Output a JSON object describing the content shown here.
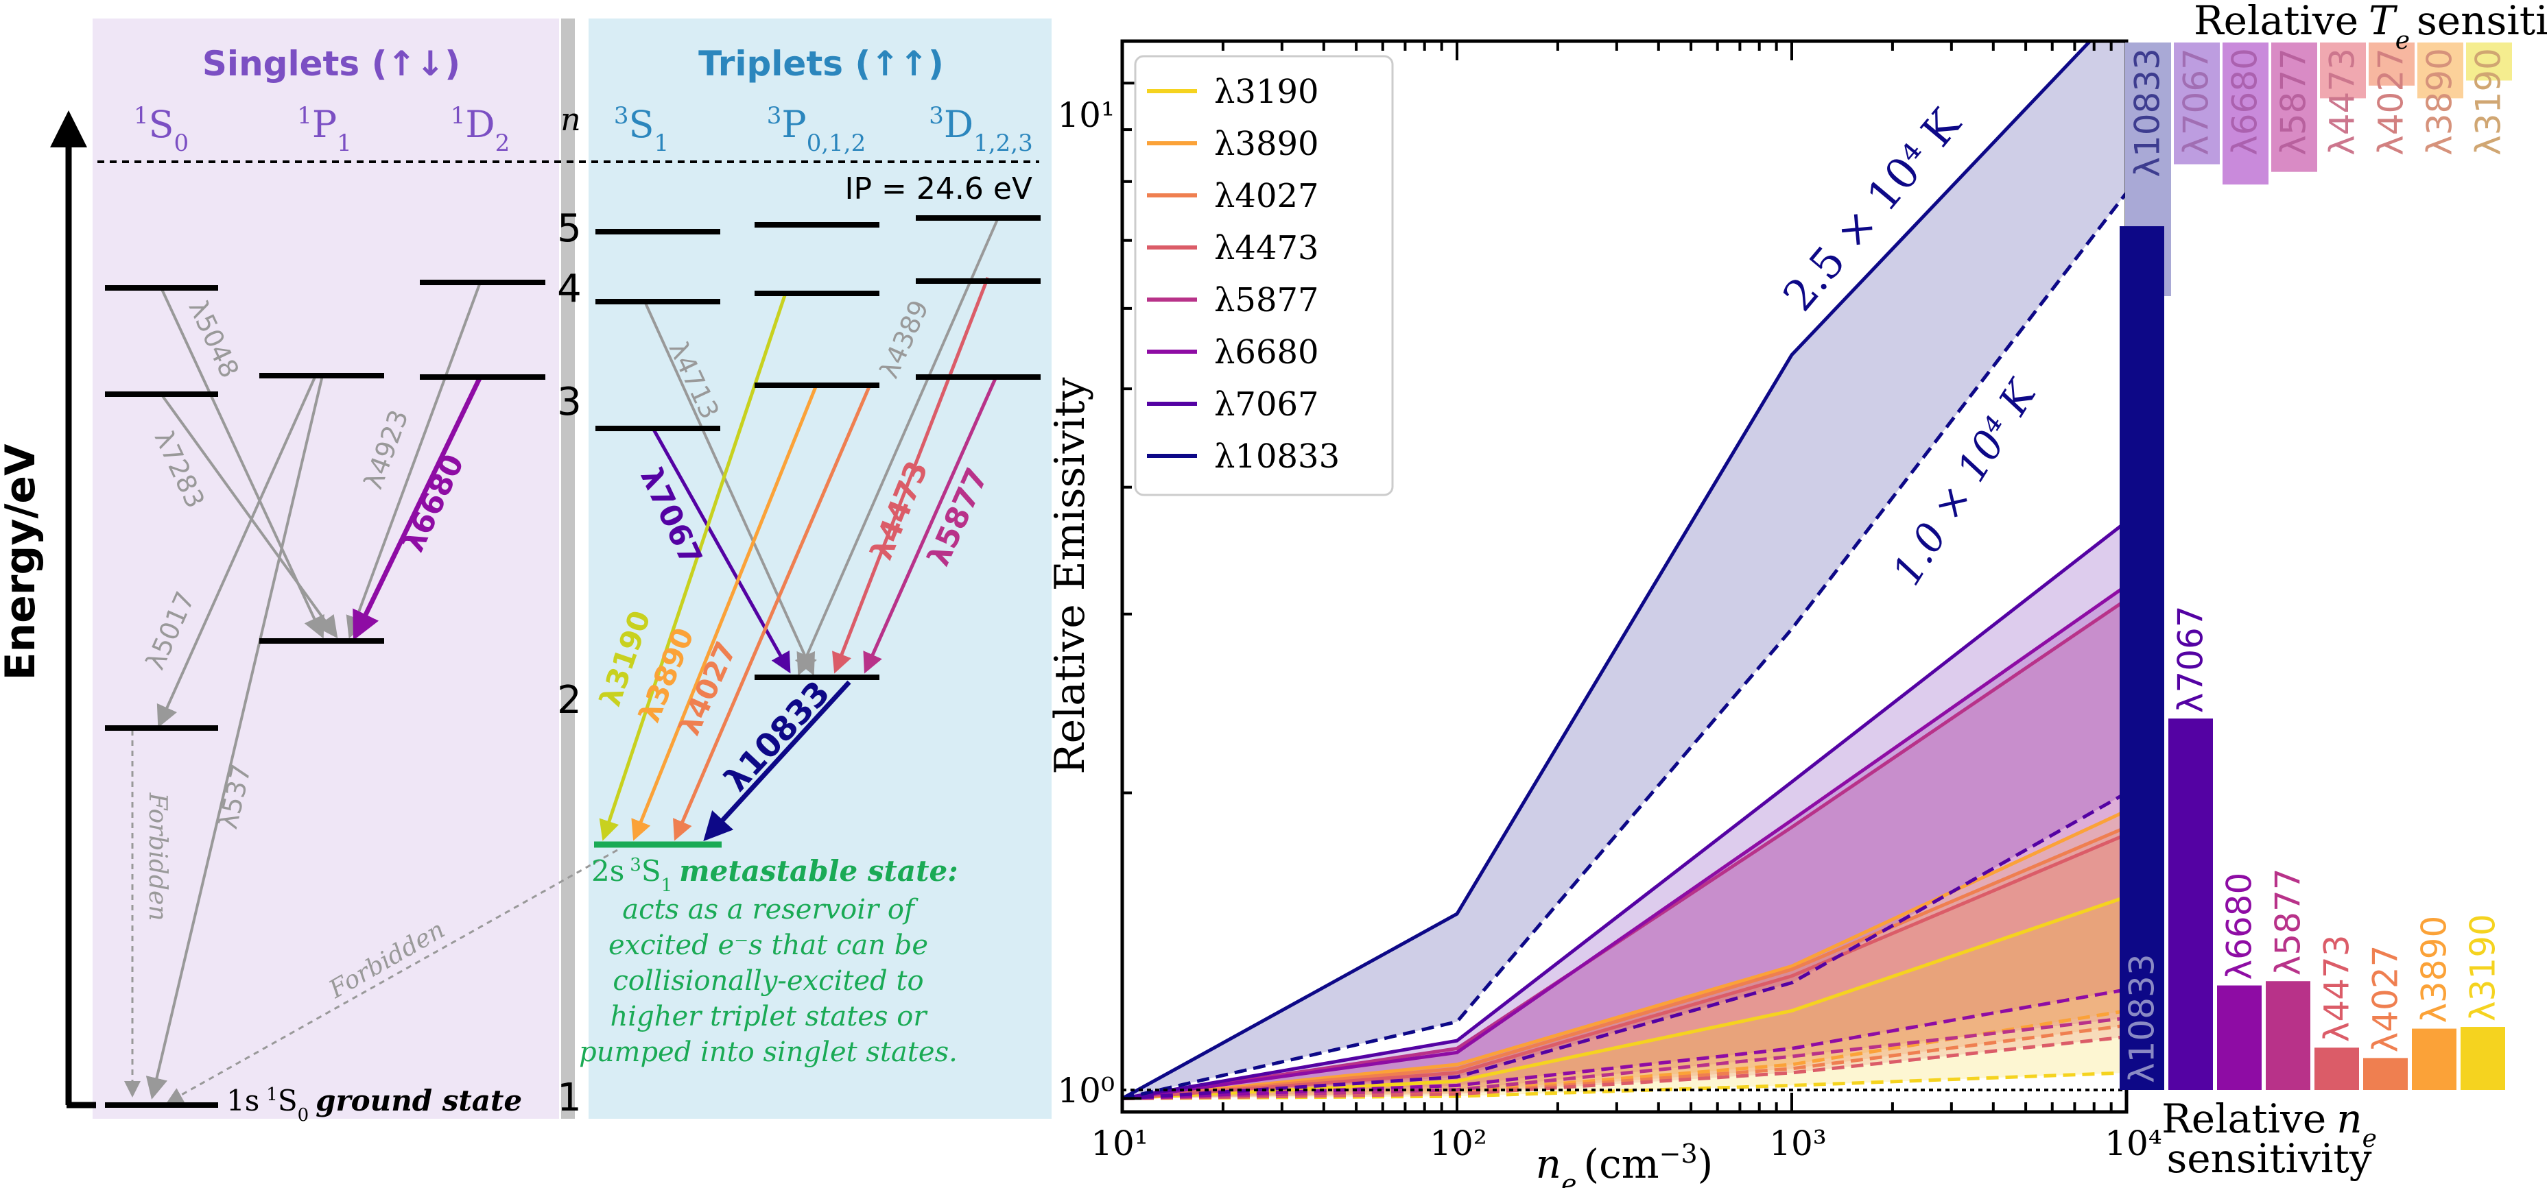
{
  "diagram": {
    "energy_axis_label": "Energy/eV",
    "singlets_label": "Singlets (↑↓)",
    "triplets_label": "Triplets (↑↑)",
    "n_header": "n",
    "n_levels": [
      "5",
      "4",
      "3",
      "2",
      "1"
    ],
    "singlet_columns": [
      {
        "base": "1",
        "term": "S",
        "sub": "0"
      },
      {
        "base": "1",
        "term": "P",
        "sub": "1"
      },
      {
        "base": "1",
        "term": "D",
        "sub": "2"
      }
    ],
    "triplet_columns": [
      {
        "base": "3",
        "term": "S",
        "sub": "1"
      },
      {
        "base": "3",
        "term": "P",
        "sub": "0,1,2"
      },
      {
        "base": "3",
        "term": "D",
        "sub": "1,2,3"
      }
    ],
    "ionization_potential": "IP = 24.6 eV",
    "ground_state": {
      "config": "1s",
      "term": "1S0",
      "label": "ground state"
    },
    "metastable_state": {
      "config": "2s",
      "term": "3S1",
      "label": "metastable state:"
    },
    "metastable_note": [
      "acts as a reservoir of",
      "excited e⁻s that can be",
      "collisionally-excited to",
      "higher triplet states or",
      "pumped into singlet states."
    ],
    "forbidden_label": "Forbidden",
    "singlet_transitions": [
      "λ5048",
      "λ7283",
      "λ4923",
      "λ6680",
      "λ5017",
      "λ537"
    ],
    "triplet_transitions": [
      "λ4713",
      "λ4389",
      "λ7067",
      "λ4473",
      "λ5877",
      "λ3190",
      "λ3890",
      "λ4027",
      "λ10833"
    ]
  },
  "colors": {
    "singlet_bg": "#efe6f6",
    "triplet_bg": "#d9edf5",
    "singlet_text": "#7b4fc3",
    "triplet_text": "#2b86bd",
    "metastable": "#1aaa55",
    "gray_arrow": "#999999"
  },
  "chart_data": {
    "type": "line",
    "title": "",
    "xlabel": "n_e (cm^-3)",
    "ylabel": "Relative Emissivity",
    "xscale": "log",
    "yscale": "log",
    "xlim": [
      10,
      10000
    ],
    "ylim": [
      0.97,
      11
    ],
    "x": [
      10,
      100,
      1000,
      10000
    ],
    "x_tick_labels": [
      "10¹",
      "10²",
      "10³",
      "10⁴"
    ],
    "y_tick_labels": [
      "10⁰",
      "10¹"
    ],
    "temperatures": [
      "2.5 × 10⁴ K",
      "1.0 × 10⁴ K"
    ],
    "series": [
      {
        "name": "λ3190",
        "color": "#f5d31f",
        "hi": [
          1.0,
          1.04,
          1.22,
          1.58
        ],
        "lo": [
          1.0,
          1.005,
          1.03,
          1.06
        ]
      },
      {
        "name": "λ3890",
        "color": "#fba238",
        "hi": [
          1.0,
          1.08,
          1.35,
          1.92
        ],
        "lo": [
          1.0,
          1.015,
          1.08,
          1.22
        ]
      },
      {
        "name": "λ4027",
        "color": "#ef7f50",
        "hi": [
          1.0,
          1.07,
          1.34,
          1.85
        ],
        "lo": [
          1.0,
          1.012,
          1.07,
          1.18
        ]
      },
      {
        "name": "λ4473",
        "color": "#db5c68",
        "hi": [
          1.0,
          1.06,
          1.32,
          1.82
        ],
        "lo": [
          1.0,
          1.01,
          1.06,
          1.15
        ]
      },
      {
        "name": "λ5877",
        "color": "#b83289",
        "hi": [
          1.0,
          1.12,
          1.85,
          3.1
        ],
        "lo": [
          1.0,
          1.02,
          1.1,
          1.2
        ]
      },
      {
        "name": "λ6680",
        "color": "#8e0ca4",
        "hi": [
          1.0,
          1.11,
          1.88,
          3.2
        ],
        "lo": [
          1.0,
          1.03,
          1.12,
          1.28
        ]
      },
      {
        "name": "λ7067",
        "color": "#5402a3",
        "hi": [
          1.0,
          1.14,
          2.05,
          3.7
        ],
        "lo": [
          1.0,
          1.05,
          1.3,
          2.0
        ]
      },
      {
        "name": "λ10833",
        "color": "#0d0887",
        "hi": [
          1.0,
          1.52,
          5.4,
          12.0
        ],
        "lo": [
          1.0,
          1.19,
          2.9,
          7.8
        ]
      }
    ],
    "te_sensitivity": {
      "title_prefix": "Relative",
      "title_symbol": "T",
      "title_subscript": "e",
      "title_suffix": "sensitivity",
      "bars": [
        {
          "name": "λ10833",
          "color": "#a9a9d6",
          "value": 1.0
        },
        {
          "name": "λ7067",
          "color": "#bd9de0",
          "value": 0.48
        },
        {
          "name": "λ6680",
          "color": "#c98adb",
          "value": 0.56
        },
        {
          "name": "λ5877",
          "color": "#d98bc5",
          "value": 0.51
        },
        {
          "name": "λ4473",
          "color": "#f0a8b0",
          "value": 0.22
        },
        {
          "name": "λ4027",
          "color": "#f7b7a0",
          "value": 0.17
        },
        {
          "name": "λ3890",
          "color": "#fcd19a",
          "value": 0.22
        },
        {
          "name": "λ3190",
          "color": "#f5ed8f",
          "value": 0.15
        }
      ]
    },
    "ne_sensitivity": {
      "title_line1_prefix": "Relative",
      "title_line1_symbol": "n",
      "title_line1_subscript": "e",
      "title_line2": "sensitivity",
      "bars": [
        {
          "name": "λ10833",
          "color": "#0d0887",
          "value": 1.0
        },
        {
          "name": "λ7067",
          "color": "#5402a3",
          "value": 0.43
        },
        {
          "name": "λ6680",
          "color": "#8e0ca4",
          "value": 0.121
        },
        {
          "name": "λ5877",
          "color": "#b83289",
          "value": 0.126
        },
        {
          "name": "λ4473",
          "color": "#db5c68",
          "value": 0.049
        },
        {
          "name": "λ4027",
          "color": "#ef7f50",
          "value": 0.037
        },
        {
          "name": "λ3890",
          "color": "#fba238",
          "value": 0.071
        },
        {
          "name": "λ3190",
          "color": "#f5d31f",
          "value": 0.073
        }
      ]
    }
  }
}
